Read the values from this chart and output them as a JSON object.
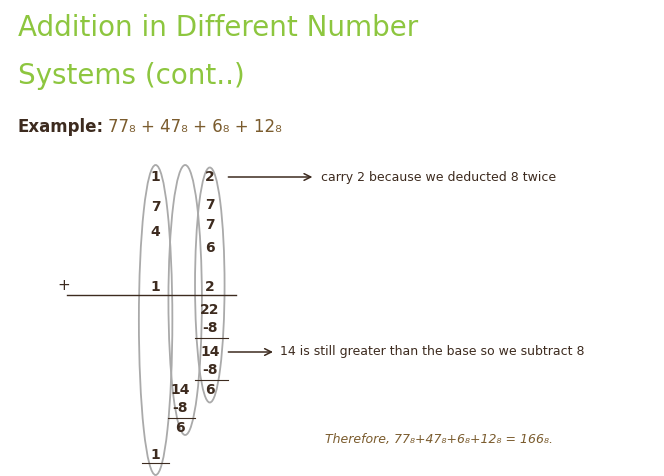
{
  "title_line1": "Addition in Different Number",
  "title_line2": "Systems (cont..)",
  "title_color": "#8dc63f",
  "bg_color": "#ffffff",
  "example_label": "Example:",
  "example_expr": "77₈ + 47₈ + 6₈ + 12₈",
  "plus_sign": "+",
  "carry_text": "carry 2 because we deducted 8 twice",
  "annotation1": "14 is still greater than the base so we subtract 8",
  "annotation2": "Therefore, 77₈+47₈+6₈+12₈ = 166₈.",
  "dark_color": "#3d2b1f",
  "brown_color": "#7b5c2e",
  "gray_color": "#aaaaaa",
  "title_fontsize": 20,
  "example_fontsize": 12,
  "digit_fontsize": 10,
  "annot_fontsize": 9
}
